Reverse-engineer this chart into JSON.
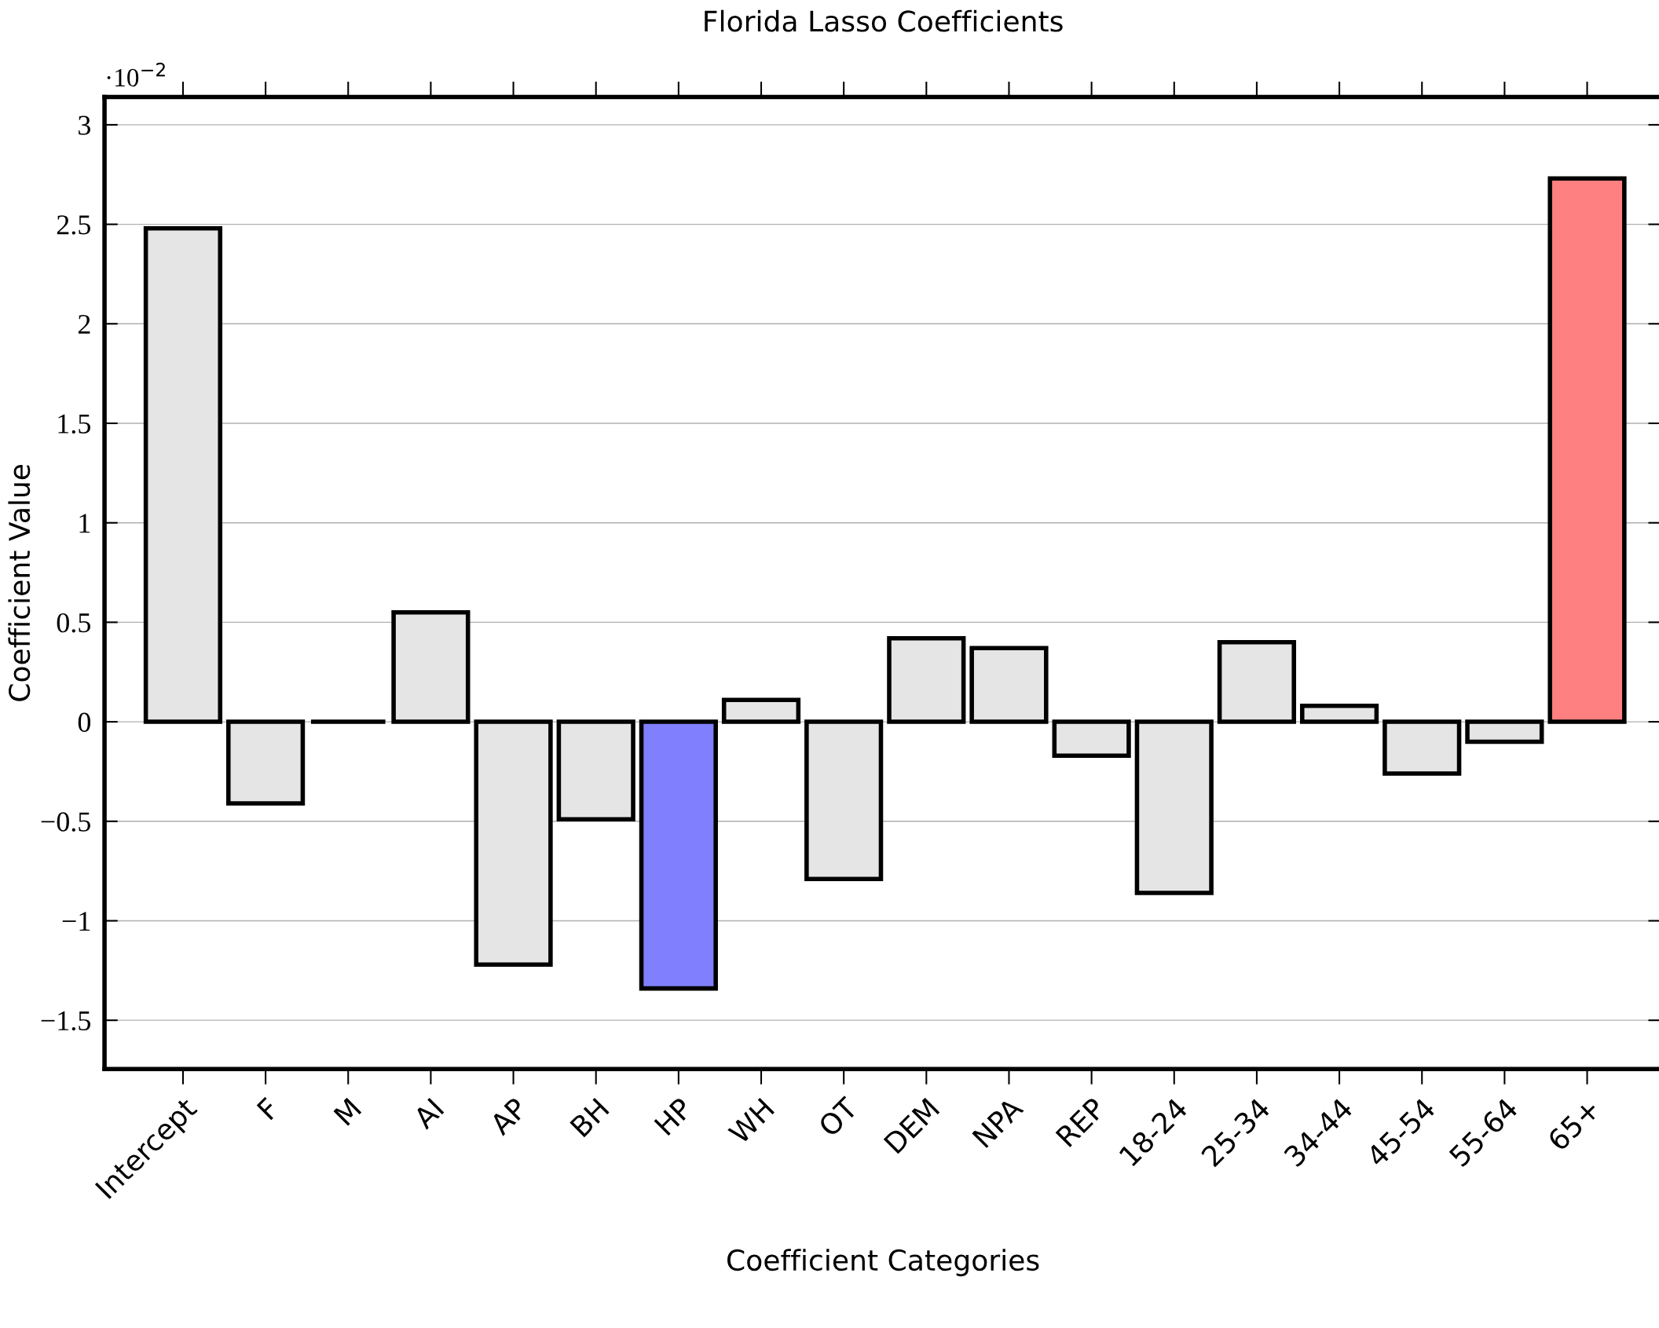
{
  "chart_data": {
    "type": "bar",
    "title": "Florida Lasso Coefficients",
    "xlabel": "Coefficient Categories",
    "ylabel": "Coefficient Value",
    "annotations": [
      "·10$^{−2}$"
    ],
    "categories": [
      "Intercept",
      "F",
      "M",
      "AI",
      "AP",
      "BH",
      "HP",
      "WH",
      "OT",
      "DEM",
      "NPA",
      "REP",
      "18-24",
      "25-34",
      "34-44",
      "45-54",
      "55-64",
      "65+"
    ],
    "values": [
      2.48,
      -0.41,
      0,
      0.55,
      -1.22,
      -0.49,
      -1.34,
      0.11,
      -0.79,
      0.42,
      0.37,
      -0.17,
      -0.86,
      0.4,
      0.08,
      -0.26,
      -0.1,
      2.73
    ],
    "colors": [
      "#e5e5e5",
      "#e5e5e5",
      "#000000",
      "#e5e5e5",
      "#e5e5e5",
      "#e5e5e5",
      "#8080ff",
      "#e5e5e5",
      "#e5e5e5",
      "#e5e5e5",
      "#e5e5e5",
      "#e5e5e5",
      "#e5e5e5",
      "#e5e5e5",
      "#e5e5e5",
      "#e5e5e5",
      "#e5e5e5",
      "#ff8080"
    ],
    "ylim": [
      -1.745,
      3.14
    ],
    "yticks": [
      {
        "value": -1.5,
        "label": "−1.5"
      },
      {
        "value": -1,
        "label": "−1"
      },
      {
        "value": -0.5,
        "label": "−0.5"
      },
      0,
      0.5,
      1,
      1.5,
      2,
      2.5,
      3
    ],
    "grid": "y"
  }
}
